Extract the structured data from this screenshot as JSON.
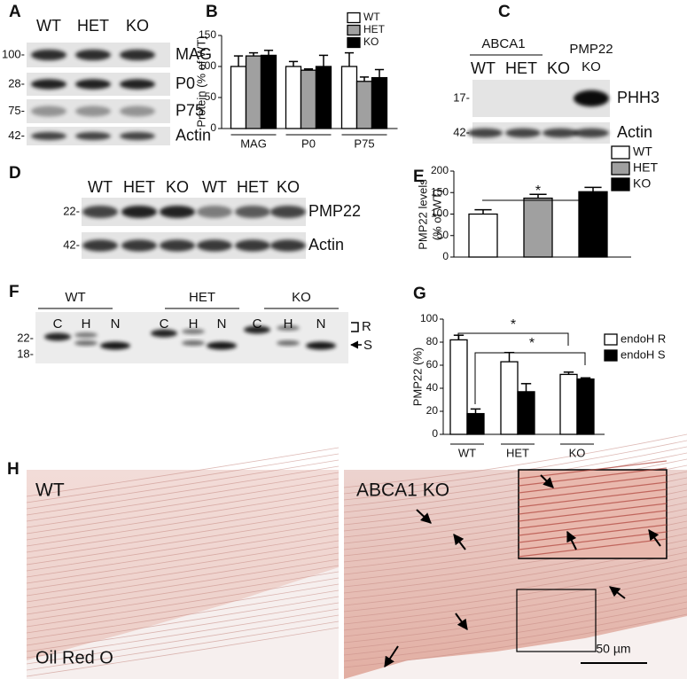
{
  "panel_labels": [
    "A",
    "B",
    "C",
    "D",
    "E",
    "F",
    "G",
    "H"
  ],
  "blot_a": {
    "lanes": [
      "WT",
      "HET",
      "KO"
    ],
    "bands": [
      {
        "marker": "100-",
        "label": "MAG"
      },
      {
        "marker": "28-",
        "label": "P0"
      },
      {
        "marker": "75-",
        "label": "P75"
      },
      {
        "marker": "42-",
        "label": "Actin"
      }
    ]
  },
  "blot_c": {
    "group": "ABCA1",
    "lanes": [
      "WT",
      "HET",
      "KO"
    ],
    "extra_lane": [
      "PMP22",
      "KO"
    ],
    "bands": [
      {
        "marker": "17-",
        "label": "PHH3"
      },
      {
        "marker": "42-",
        "label": "Actin"
      }
    ]
  },
  "blot_d": {
    "lanes": [
      "WT",
      "HET",
      "KO",
      "WT",
      "HET",
      "KO"
    ],
    "bands": [
      {
        "marker": "22-",
        "label": "PMP22"
      },
      {
        "marker": "42-",
        "label": "Actin"
      }
    ]
  },
  "blot_f": {
    "groups": [
      "WT",
      "HET",
      "KO"
    ],
    "lanes": [
      "C",
      "H",
      "N"
    ],
    "markers": [
      "22-",
      "18-"
    ],
    "forms": [
      "R",
      "S"
    ]
  },
  "histology": {
    "left": {
      "label": "WT",
      "stain": "Oil Red O"
    },
    "right": {
      "label": "ABCA1 KO"
    },
    "scale_bar": "50 µm"
  },
  "chart_data": [
    {
      "type": "bar",
      "y_label": [
        "Protein (% of WT)"
      ],
      "categories": [
        "MAG",
        "P0",
        "P75"
      ],
      "series": [
        {
          "name": "WT",
          "color": "#ffffff",
          "values": [
            100,
            100,
            100
          ],
          "errors": [
            17,
            8,
            22
          ]
        },
        {
          "name": "HET",
          "color": "#a0a0a0",
          "values": [
            117,
            94,
            76
          ],
          "errors": [
            5,
            2,
            7
          ]
        },
        {
          "name": "KO",
          "color": "#000000",
          "values": [
            118,
            100,
            82
          ],
          "errors": [
            8,
            18,
            13
          ]
        }
      ],
      "ylim": [
        0,
        150
      ],
      "yticks": [
        0,
        50,
        100,
        150
      ],
      "legend": "upper right",
      "annotations": []
    },
    {
      "type": "bar",
      "y_label": [
        "PMP22 levels",
        "(% of WT)"
      ],
      "categories": [
        null
      ],
      "series": [
        {
          "name": "WT",
          "color": "#ffffff",
          "values": [
            100
          ],
          "errors": [
            10
          ]
        },
        {
          "name": "HET",
          "color": "#a0a0a0",
          "values": [
            137
          ],
          "errors": [
            9
          ]
        },
        {
          "name": "KO",
          "color": "#000000",
          "values": [
            152
          ],
          "errors": [
            10
          ]
        }
      ],
      "ylim": [
        0,
        200
      ],
      "yticks": [
        0,
        50,
        100,
        150,
        200
      ],
      "legend": "upper right",
      "annotations": [
        "*"
      ]
    },
    {
      "type": "bar",
      "y_label": [
        "PMP22  (%)"
      ],
      "categories": [
        "WT",
        "HET",
        "KO"
      ],
      "series": [
        {
          "name": "endoH R",
          "color": "#ffffff",
          "values": [
            82,
            63,
            52
          ],
          "errors": [
            4,
            8,
            2
          ]
        },
        {
          "name": "endoH S",
          "color": "#000000",
          "values": [
            18,
            37,
            48
          ],
          "errors": [
            4,
            7,
            1
          ]
        }
      ],
      "ylim": [
        0,
        100
      ],
      "yticks": [
        0,
        20,
        40,
        60,
        80,
        100
      ],
      "legend": "upper right",
      "annotations": [
        "*",
        "*"
      ]
    }
  ]
}
